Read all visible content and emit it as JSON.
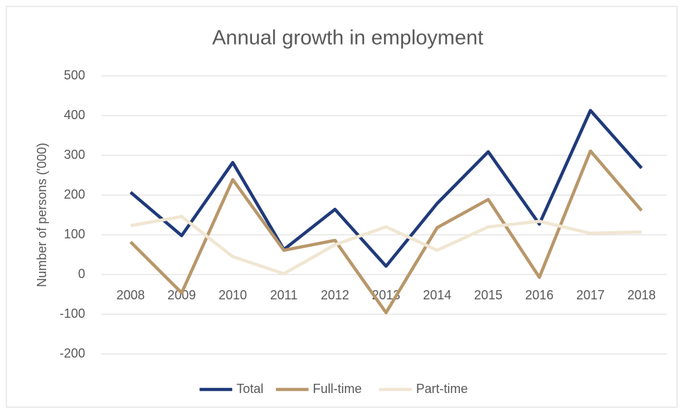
{
  "chart_data": {
    "type": "line",
    "title": "Annual growth in employment",
    "y_label": "Number of persons ('000)",
    "categories": [
      "2008",
      "2009",
      "2010",
      "2011",
      "2012",
      "2013",
      "2014",
      "2015",
      "2016",
      "2017",
      "2018"
    ],
    "series": [
      {
        "name": "Total",
        "color": "#1f3a7a",
        "values": [
          207,
          98,
          282,
          63,
          164,
          21,
          179,
          309,
          127,
          413,
          268
        ]
      },
      {
        "name": "Full-time",
        "color": "#b8976a",
        "values": [
          82,
          -46,
          239,
          61,
          86,
          -96,
          118,
          189,
          -7,
          311,
          161
        ]
      },
      {
        "name": "Part-time",
        "color": "#f0e6d2",
        "values": [
          123,
          146,
          45,
          2,
          75,
          120,
          61,
          120,
          134,
          104,
          107
        ]
      }
    ],
    "ylim": [
      -200,
      500
    ],
    "yticks": [
      -200,
      -100,
      0,
      100,
      200,
      300,
      400,
      500
    ],
    "grid": true,
    "legend": "bottom"
  }
}
